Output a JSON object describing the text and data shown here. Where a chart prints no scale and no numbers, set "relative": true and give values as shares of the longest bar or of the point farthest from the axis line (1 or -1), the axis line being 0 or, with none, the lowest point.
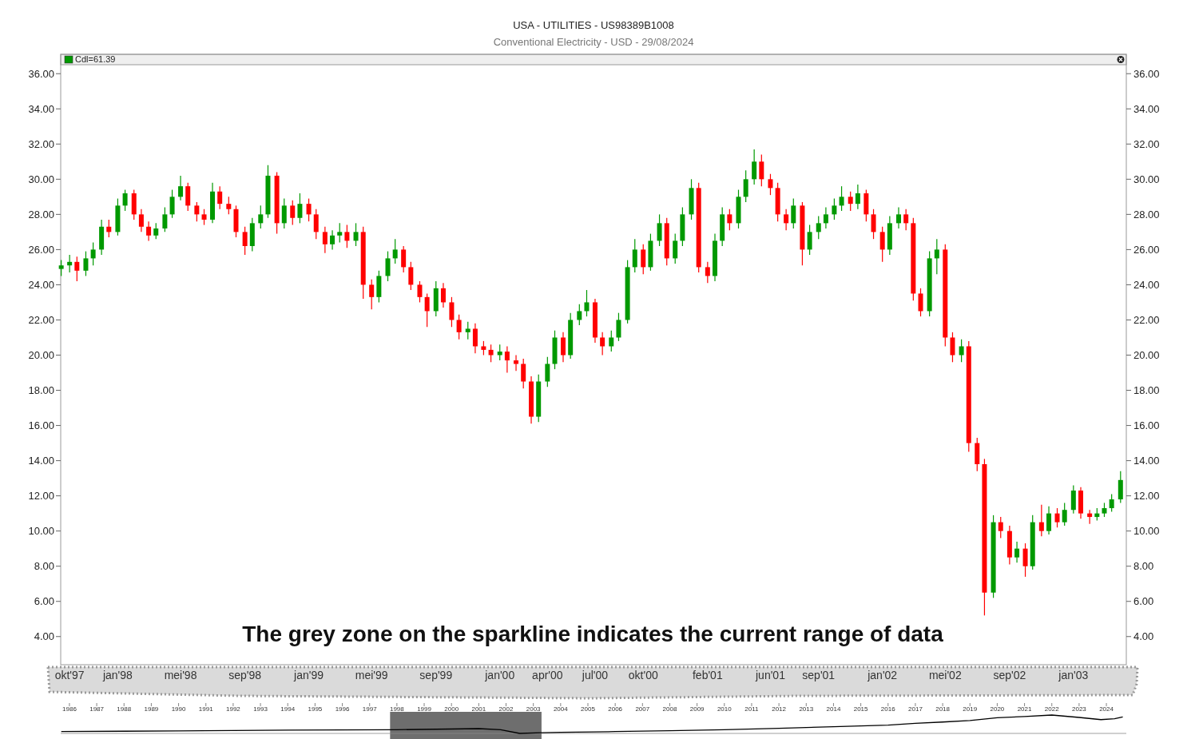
{
  "chart_data": [
    {
      "type": "candlestick",
      "title": "USA - UTILITIES - US98389B1008",
      "subtitle": "Conventional Electricity - USD - 29/08/2024",
      "legend_title": "Cdl=61.39",
      "x": [
        "1997-09-15",
        "1997-10-01",
        "1997-10-15",
        "1997-11-01",
        "1997-11-15",
        "1997-12-01",
        "1997-12-15",
        "1998-01-01",
        "1998-01-15",
        "1998-02-01",
        "1998-02-15",
        "1998-03-01",
        "1998-03-15",
        "1998-04-01",
        "1998-04-15",
        "1998-05-01",
        "1998-05-15",
        "1998-06-01",
        "1998-06-15",
        "1998-07-01",
        "1998-07-15",
        "1998-08-01",
        "1998-08-15",
        "1998-09-01",
        "1998-09-15",
        "1998-10-01",
        "1998-10-15",
        "1998-11-01",
        "1998-11-15",
        "1998-12-01",
        "1998-12-15",
        "1999-01-01",
        "1999-01-15",
        "1999-02-01",
        "1999-02-15",
        "1999-03-01",
        "1999-03-15",
        "1999-04-01",
        "1999-04-15",
        "1999-05-01",
        "1999-05-15",
        "1999-06-01",
        "1999-06-15",
        "1999-07-01",
        "1999-07-15",
        "1999-08-01",
        "1999-08-15",
        "1999-09-01",
        "1999-09-15",
        "1999-10-01",
        "1999-10-15",
        "1999-11-01",
        "1999-11-15",
        "1999-12-01",
        "1999-12-15",
        "2000-01-01",
        "2000-01-15",
        "2000-02-01",
        "2000-02-15",
        "2000-03-01",
        "2000-03-15",
        "2000-04-01",
        "2000-04-15",
        "2000-05-01",
        "2000-05-15",
        "2000-06-01",
        "2000-06-15",
        "2000-07-01",
        "2000-07-15",
        "2000-08-01",
        "2000-08-15",
        "2000-09-01",
        "2000-09-15",
        "2000-10-01",
        "2000-10-15",
        "2000-11-01",
        "2000-11-15",
        "2000-12-01",
        "2000-12-15",
        "2001-01-01",
        "2001-01-15",
        "2001-02-01",
        "2001-02-15",
        "2001-03-01",
        "2001-03-15",
        "2001-04-01",
        "2001-04-15",
        "2001-05-01",
        "2001-05-15",
        "2001-06-01",
        "2001-06-15",
        "2001-07-01",
        "2001-07-15",
        "2001-08-01",
        "2001-08-15",
        "2001-09-01",
        "2001-09-15",
        "2001-10-01",
        "2001-10-15",
        "2001-11-01",
        "2001-11-15",
        "2001-12-01",
        "2001-12-15",
        "2002-01-01",
        "2002-01-15",
        "2002-02-01",
        "2002-02-15",
        "2002-03-01",
        "2002-03-15",
        "2002-04-01",
        "2002-04-15",
        "2002-05-01",
        "2002-05-15",
        "2002-06-01",
        "2002-06-15",
        "2002-07-01",
        "2002-07-15",
        "2002-08-01",
        "2002-08-15",
        "2002-09-01",
        "2002-09-15",
        "2002-10-01",
        "2002-10-15",
        "2002-11-01",
        "2002-11-15",
        "2002-12-01",
        "2002-12-15",
        "2003-01-01",
        "2003-01-15",
        "2003-02-01",
        "2003-02-15",
        "2003-03-01",
        "2003-03-15",
        "2003-04-01"
      ],
      "ohlc": [
        [
          24.9,
          25.4,
          24.5,
          25.1
        ],
        [
          25.1,
          25.7,
          24.7,
          25.3
        ],
        [
          25.3,
          25.6,
          24.2,
          24.8
        ],
        [
          24.8,
          25.9,
          24.5,
          25.5
        ],
        [
          25.5,
          26.4,
          25.1,
          26.0
        ],
        [
          26.0,
          27.7,
          25.7,
          27.3
        ],
        [
          27.3,
          27.7,
          26.7,
          27.0
        ],
        [
          27.0,
          28.9,
          26.8,
          28.5
        ],
        [
          28.5,
          29.4,
          28.2,
          29.2
        ],
        [
          29.2,
          29.4,
          27.7,
          28.0
        ],
        [
          28.0,
          28.3,
          27.0,
          27.3
        ],
        [
          27.3,
          27.6,
          26.5,
          26.8
        ],
        [
          26.8,
          27.5,
          26.6,
          27.2
        ],
        [
          27.2,
          28.4,
          27.0,
          28.0
        ],
        [
          28.0,
          29.4,
          27.8,
          29.0
        ],
        [
          29.0,
          30.2,
          28.8,
          29.6
        ],
        [
          29.6,
          29.8,
          28.2,
          28.5
        ],
        [
          28.5,
          28.7,
          27.6,
          28.0
        ],
        [
          28.0,
          28.3,
          27.4,
          27.7
        ],
        [
          27.7,
          29.8,
          27.5,
          29.3
        ],
        [
          29.3,
          29.6,
          28.3,
          28.6
        ],
        [
          28.6,
          29.0,
          28.0,
          28.3
        ],
        [
          28.3,
          28.5,
          26.7,
          27.0
        ],
        [
          27.0,
          27.3,
          25.7,
          26.2
        ],
        [
          26.2,
          27.8,
          25.9,
          27.5
        ],
        [
          27.5,
          28.5,
          27.2,
          28.0
        ],
        [
          28.0,
          30.8,
          27.8,
          30.2
        ],
        [
          30.2,
          30.4,
          26.9,
          27.5
        ],
        [
          27.5,
          28.9,
          27.2,
          28.5
        ],
        [
          28.5,
          28.8,
          27.4,
          27.8
        ],
        [
          27.8,
          29.2,
          27.5,
          28.6
        ],
        [
          28.6,
          28.9,
          27.6,
          28.0
        ],
        [
          28.0,
          28.3,
          26.6,
          27.0
        ],
        [
          27.0,
          27.3,
          25.8,
          26.3
        ],
        [
          26.3,
          27.1,
          26.0,
          26.8
        ],
        [
          26.8,
          27.5,
          26.4,
          27.0
        ],
        [
          27.0,
          27.4,
          26.1,
          26.5
        ],
        [
          26.5,
          27.5,
          26.2,
          27.0
        ],
        [
          27.0,
          27.3,
          23.2,
          24.0
        ],
        [
          24.0,
          24.3,
          22.6,
          23.3
        ],
        [
          23.3,
          24.8,
          23.0,
          24.5
        ],
        [
          24.5,
          25.9,
          24.2,
          25.5
        ],
        [
          25.5,
          26.6,
          25.2,
          26.0
        ],
        [
          26.0,
          26.2,
          24.7,
          25.0
        ],
        [
          25.0,
          25.3,
          23.7,
          24.0
        ],
        [
          24.0,
          24.2,
          23.0,
          23.3
        ],
        [
          23.3,
          23.5,
          21.6,
          22.5
        ],
        [
          22.5,
          24.2,
          22.2,
          23.8
        ],
        [
          23.8,
          24.1,
          22.7,
          23.0
        ],
        [
          23.0,
          23.3,
          21.6,
          22.0
        ],
        [
          22.0,
          22.3,
          20.9,
          21.3
        ],
        [
          21.3,
          21.9,
          20.9,
          21.5
        ],
        [
          21.5,
          21.8,
          20.1,
          20.5
        ],
        [
          20.5,
          20.8,
          20.0,
          20.3
        ],
        [
          20.3,
          20.6,
          19.6,
          20.0
        ],
        [
          20.0,
          20.6,
          19.7,
          20.2
        ],
        [
          20.2,
          20.5,
          19.0,
          19.7
        ],
        [
          19.7,
          20.0,
          19.1,
          19.5
        ],
        [
          19.5,
          19.8,
          18.1,
          18.5
        ],
        [
          18.5,
          18.8,
          16.1,
          16.5
        ],
        [
          16.5,
          18.9,
          16.2,
          18.5
        ],
        [
          18.5,
          19.9,
          18.2,
          19.5
        ],
        [
          19.5,
          21.4,
          19.2,
          21.0
        ],
        [
          21.0,
          21.3,
          19.6,
          20.0
        ],
        [
          20.0,
          22.4,
          19.8,
          22.0
        ],
        [
          22.0,
          22.9,
          21.7,
          22.5
        ],
        [
          22.5,
          23.7,
          22.2,
          23.0
        ],
        [
          23.0,
          23.2,
          20.7,
          21.0
        ],
        [
          21.0,
          21.3,
          20.0,
          20.5
        ],
        [
          20.5,
          21.4,
          20.2,
          21.0
        ],
        [
          21.0,
          22.4,
          20.8,
          22.0
        ],
        [
          22.0,
          25.4,
          21.8,
          25.0
        ],
        [
          25.0,
          26.6,
          24.7,
          26.0
        ],
        [
          26.0,
          26.3,
          24.6,
          25.0
        ],
        [
          25.0,
          26.9,
          24.8,
          26.5
        ],
        [
          26.5,
          28.0,
          26.2,
          27.5
        ],
        [
          27.5,
          27.8,
          25.1,
          25.5
        ],
        [
          25.5,
          26.9,
          25.2,
          26.5
        ],
        [
          26.5,
          28.4,
          26.2,
          28.0
        ],
        [
          28.0,
          30.0,
          27.7,
          29.5
        ],
        [
          29.5,
          29.8,
          24.7,
          25.0
        ],
        [
          25.0,
          25.3,
          24.1,
          24.5
        ],
        [
          24.5,
          26.9,
          24.2,
          26.5
        ],
        [
          26.5,
          28.4,
          26.2,
          28.0
        ],
        [
          28.0,
          28.3,
          27.1,
          27.5
        ],
        [
          27.5,
          29.4,
          27.2,
          29.0
        ],
        [
          29.0,
          30.5,
          28.7,
          30.0
        ],
        [
          30.0,
          31.7,
          29.7,
          31.0
        ],
        [
          31.0,
          31.4,
          29.6,
          30.0
        ],
        [
          30.0,
          30.3,
          29.1,
          29.5
        ],
        [
          29.5,
          29.8,
          27.6,
          28.0
        ],
        [
          28.0,
          28.3,
          27.1,
          27.5
        ],
        [
          27.5,
          28.9,
          27.2,
          28.5
        ],
        [
          28.5,
          28.7,
          25.1,
          26.0
        ],
        [
          26.0,
          27.4,
          25.7,
          27.0
        ],
        [
          27.0,
          27.9,
          26.6,
          27.5
        ],
        [
          27.5,
          28.4,
          27.2,
          28.0
        ],
        [
          28.0,
          28.9,
          27.7,
          28.5
        ],
        [
          28.5,
          29.6,
          28.2,
          29.0
        ],
        [
          29.0,
          29.3,
          28.2,
          28.6
        ],
        [
          28.6,
          29.7,
          28.3,
          29.2
        ],
        [
          29.2,
          29.4,
          27.6,
          28.0
        ],
        [
          28.0,
          28.3,
          26.6,
          27.0
        ],
        [
          27.0,
          27.3,
          25.3,
          26.0
        ],
        [
          26.0,
          27.9,
          25.7,
          27.5
        ],
        [
          27.5,
          28.4,
          27.2,
          28.0
        ],
        [
          28.0,
          28.3,
          27.1,
          27.5
        ],
        [
          27.5,
          27.8,
          23.1,
          23.5
        ],
        [
          23.5,
          23.8,
          22.2,
          22.5
        ],
        [
          22.5,
          25.9,
          22.2,
          25.5
        ],
        [
          25.5,
          26.6,
          24.6,
          26.0
        ],
        [
          26.0,
          26.3,
          20.5,
          21.0
        ],
        [
          21.0,
          21.3,
          19.6,
          20.0
        ],
        [
          20.0,
          20.9,
          19.6,
          20.5
        ],
        [
          20.5,
          20.8,
          14.5,
          15.0
        ],
        [
          15.0,
          15.3,
          13.4,
          13.8
        ],
        [
          13.8,
          14.1,
          5.2,
          6.5
        ],
        [
          6.5,
          10.9,
          6.2,
          10.5
        ],
        [
          10.5,
          10.8,
          9.6,
          10.0
        ],
        [
          10.0,
          10.3,
          8.1,
          8.5
        ],
        [
          8.5,
          9.4,
          8.2,
          9.0
        ],
        [
          9.0,
          9.3,
          7.4,
          8.0
        ],
        [
          8.0,
          10.9,
          7.8,
          10.5
        ],
        [
          10.5,
          11.5,
          9.7,
          10.0
        ],
        [
          10.0,
          11.4,
          9.8,
          11.0
        ],
        [
          11.0,
          11.3,
          10.2,
          10.5
        ],
        [
          10.5,
          11.6,
          10.3,
          11.2
        ],
        [
          11.2,
          12.6,
          11.0,
          12.3
        ],
        [
          12.3,
          12.5,
          10.7,
          11.0
        ],
        [
          11.0,
          11.2,
          10.4,
          10.8
        ],
        [
          10.8,
          11.3,
          10.6,
          11.0
        ],
        [
          11.0,
          11.6,
          10.8,
          11.3
        ],
        [
          11.3,
          12.1,
          11.1,
          11.8
        ],
        [
          11.8,
          13.4,
          11.6,
          12.9
        ]
      ],
      "colors": [
        "#009900",
        "#009900",
        "#ff0000",
        "#009900",
        "#009900",
        "#009900",
        "#ff0000",
        "#009900",
        "#009900",
        "#ff0000",
        "#ff0000",
        "#ff0000",
        "#009900",
        "#009900",
        "#009900",
        "#009900",
        "#ff0000",
        "#ff0000",
        "#ff0000",
        "#009900",
        "#ff0000",
        "#ff0000",
        "#ff0000",
        "#ff0000",
        "#009900",
        "#009900",
        "#009900",
        "#ff0000",
        "#009900",
        "#ff0000",
        "#009900",
        "#ff0000",
        "#ff0000",
        "#ff0000",
        "#009900",
        "#009900",
        "#ff0000",
        "#009900",
        "#ff0000",
        "#ff0000",
        "#009900",
        "#009900",
        "#009900",
        "#ff0000",
        "#ff0000",
        "#ff0000",
        "#ff0000",
        "#009900",
        "#ff0000",
        "#ff0000",
        "#ff0000",
        "#009900",
        "#ff0000",
        "#ff0000",
        "#ff0000",
        "#009900",
        "#ff0000",
        "#ff0000",
        "#ff0000",
        "#ff0000",
        "#009900",
        "#009900",
        "#009900",
        "#ff0000",
        "#009900",
        "#009900",
        "#009900",
        "#ff0000",
        "#ff0000",
        "#009900",
        "#009900",
        "#009900",
        "#009900",
        "#ff0000",
        "#009900",
        "#009900",
        "#ff0000",
        "#009900",
        "#009900",
        "#009900",
        "#ff0000",
        "#ff0000",
        "#009900",
        "#009900",
        "#ff0000",
        "#009900",
        "#009900",
        "#009900",
        "#ff0000",
        "#ff0000",
        "#ff0000",
        "#ff0000",
        "#009900",
        "#ff0000",
        "#009900",
        "#009900",
        "#009900",
        "#009900",
        "#009900",
        "#ff0000",
        "#009900",
        "#ff0000",
        "#ff0000",
        "#ff0000",
        "#009900",
        "#009900",
        "#ff0000",
        "#ff0000",
        "#ff0000",
        "#009900",
        "#009900",
        "#ff0000",
        "#ff0000",
        "#009900",
        "#ff0000",
        "#ff0000",
        "#ff0000",
        "#009900",
        "#ff0000",
        "#ff0000",
        "#009900",
        "#ff0000",
        "#009900",
        "#ff0000",
        "#009900",
        "#ff0000",
        "#009900",
        "#009900",
        "#ff0000",
        "#ff0000",
        "#009900",
        "#009900",
        "#009900",
        "#009900"
      ],
      "xlim": [
        "1997-09-14",
        "2003-04-12"
      ],
      "xticks": [
        {
          "value": "1997-10-01",
          "label": "okt'97"
        },
        {
          "value": "1998-01-01",
          "label": "jan'98"
        },
        {
          "value": "1998-05-01",
          "label": "mei'98"
        },
        {
          "value": "1998-09-01",
          "label": "sep'98"
        },
        {
          "value": "1999-01-01",
          "label": "jan'99"
        },
        {
          "value": "1999-05-01",
          "label": "mei'99"
        },
        {
          "value": "1999-09-01",
          "label": "sep'99"
        },
        {
          "value": "2000-01-01",
          "label": "jan'00"
        },
        {
          "value": "2000-04-01",
          "label": "apr'00"
        },
        {
          "value": "2000-07-01",
          "label": "jul'00"
        },
        {
          "value": "2000-10-01",
          "label": "okt'00"
        },
        {
          "value": "2001-02-01",
          "label": "feb'01"
        },
        {
          "value": "2001-06-01",
          "label": "jun'01"
        },
        {
          "value": "2001-09-01",
          "label": "sep'01"
        },
        {
          "value": "2002-01-01",
          "label": "jan'02"
        },
        {
          "value": "2002-05-01",
          "label": "mei'02"
        },
        {
          "value": "2002-09-01",
          "label": "sep'02"
        },
        {
          "value": "2003-01-01",
          "label": "jan'03"
        }
      ],
      "ylim": [
        2.4,
        37.1
      ],
      "yticks": [
        {
          "value": 4,
          "label": "4.00"
        },
        {
          "value": 6,
          "label": "6.00"
        },
        {
          "value": 8,
          "label": "8.00"
        },
        {
          "value": 10,
          "label": "10.00"
        },
        {
          "value": 12,
          "label": "12.00"
        },
        {
          "value": 14,
          "label": "14.00"
        },
        {
          "value": 16,
          "label": "16.00"
        },
        {
          "value": 18,
          "label": "18.00"
        },
        {
          "value": 20,
          "label": "20.00"
        },
        {
          "value": 22,
          "label": "22.00"
        },
        {
          "value": 24,
          "label": "24.00"
        },
        {
          "value": 26,
          "label": "26.00"
        },
        {
          "value": 28,
          "label": "28.00"
        },
        {
          "value": 30,
          "label": "30.00"
        },
        {
          "value": 32,
          "label": "32.00"
        },
        {
          "value": 34,
          "label": "34.00"
        },
        {
          "value": 36,
          "label": "36.00"
        }
      ],
      "y2lim": [
        2.4,
        37.1
      ],
      "y2ticks": [
        {
          "value": 4,
          "label": "4.00"
        },
        {
          "value": 6,
          "label": "6.00"
        },
        {
          "value": 8,
          "label": "8.00"
        },
        {
          "value": 10,
          "label": "10.00"
        },
        {
          "value": 12,
          "label": "12.00"
        },
        {
          "value": 14,
          "label": "14.00"
        },
        {
          "value": 16,
          "label": "16.00"
        },
        {
          "value": 18,
          "label": "18.00"
        },
        {
          "value": 20,
          "label": "20.00"
        },
        {
          "value": 22,
          "label": "22.00"
        },
        {
          "value": 24,
          "label": "24.00"
        },
        {
          "value": 26,
          "label": "26.00"
        },
        {
          "value": 28,
          "label": "28.00"
        },
        {
          "value": 30,
          "label": "30.00"
        },
        {
          "value": 32,
          "label": "32.00"
        },
        {
          "value": 34,
          "label": "34.00"
        },
        {
          "value": 36,
          "label": "36.00"
        }
      ],
      "annotations": [
        "The grey zone on the sparkline indicates the current range of data"
      ]
    },
    {
      "type": "line",
      "relative": true,
      "tick_labels": "x",
      "xlim": [
        1985.68,
        2024.73
      ],
      "xticks": [
        1986,
        1987,
        1988,
        1989,
        1990,
        1991,
        1992,
        1993,
        1994,
        1995,
        1996,
        1997,
        1998,
        1999,
        2000,
        2001,
        2002,
        2003,
        2004,
        2005,
        2006,
        2007,
        2008,
        2009,
        2010,
        2011,
        2012,
        2013,
        2014,
        2015,
        2016,
        2017,
        2018,
        2019,
        2020,
        2021,
        2022,
        2023,
        2024
      ],
      "bands": [
        {
          "axis": "x",
          "from": 1997.75,
          "to": 2003.3,
          "color": "#6e6e6e"
        }
      ],
      "series": [
        {
          "color": "#000000",
          "x": [
            1985.7,
            1988,
            1990,
            1992,
            1994,
            1996,
            1998,
            2000,
            2001,
            2001.8,
            2002.5,
            2003.3,
            2004,
            2006,
            2008,
            2010,
            2012,
            2014,
            2016,
            2017,
            2018,
            2019,
            2020,
            2021,
            2022,
            2023,
            2023.8,
            2024.3,
            2024.6
          ],
          "values": [
            0.1,
            0.12,
            0.14,
            0.16,
            0.18,
            0.19,
            0.2,
            0.24,
            0.26,
            0.2,
            0.0,
            0.04,
            0.06,
            0.1,
            0.15,
            0.2,
            0.28,
            0.36,
            0.45,
            0.55,
            0.62,
            0.7,
            0.85,
            0.92,
            1.0,
            0.87,
            0.75,
            0.8,
            0.9
          ]
        }
      ]
    }
  ]
}
